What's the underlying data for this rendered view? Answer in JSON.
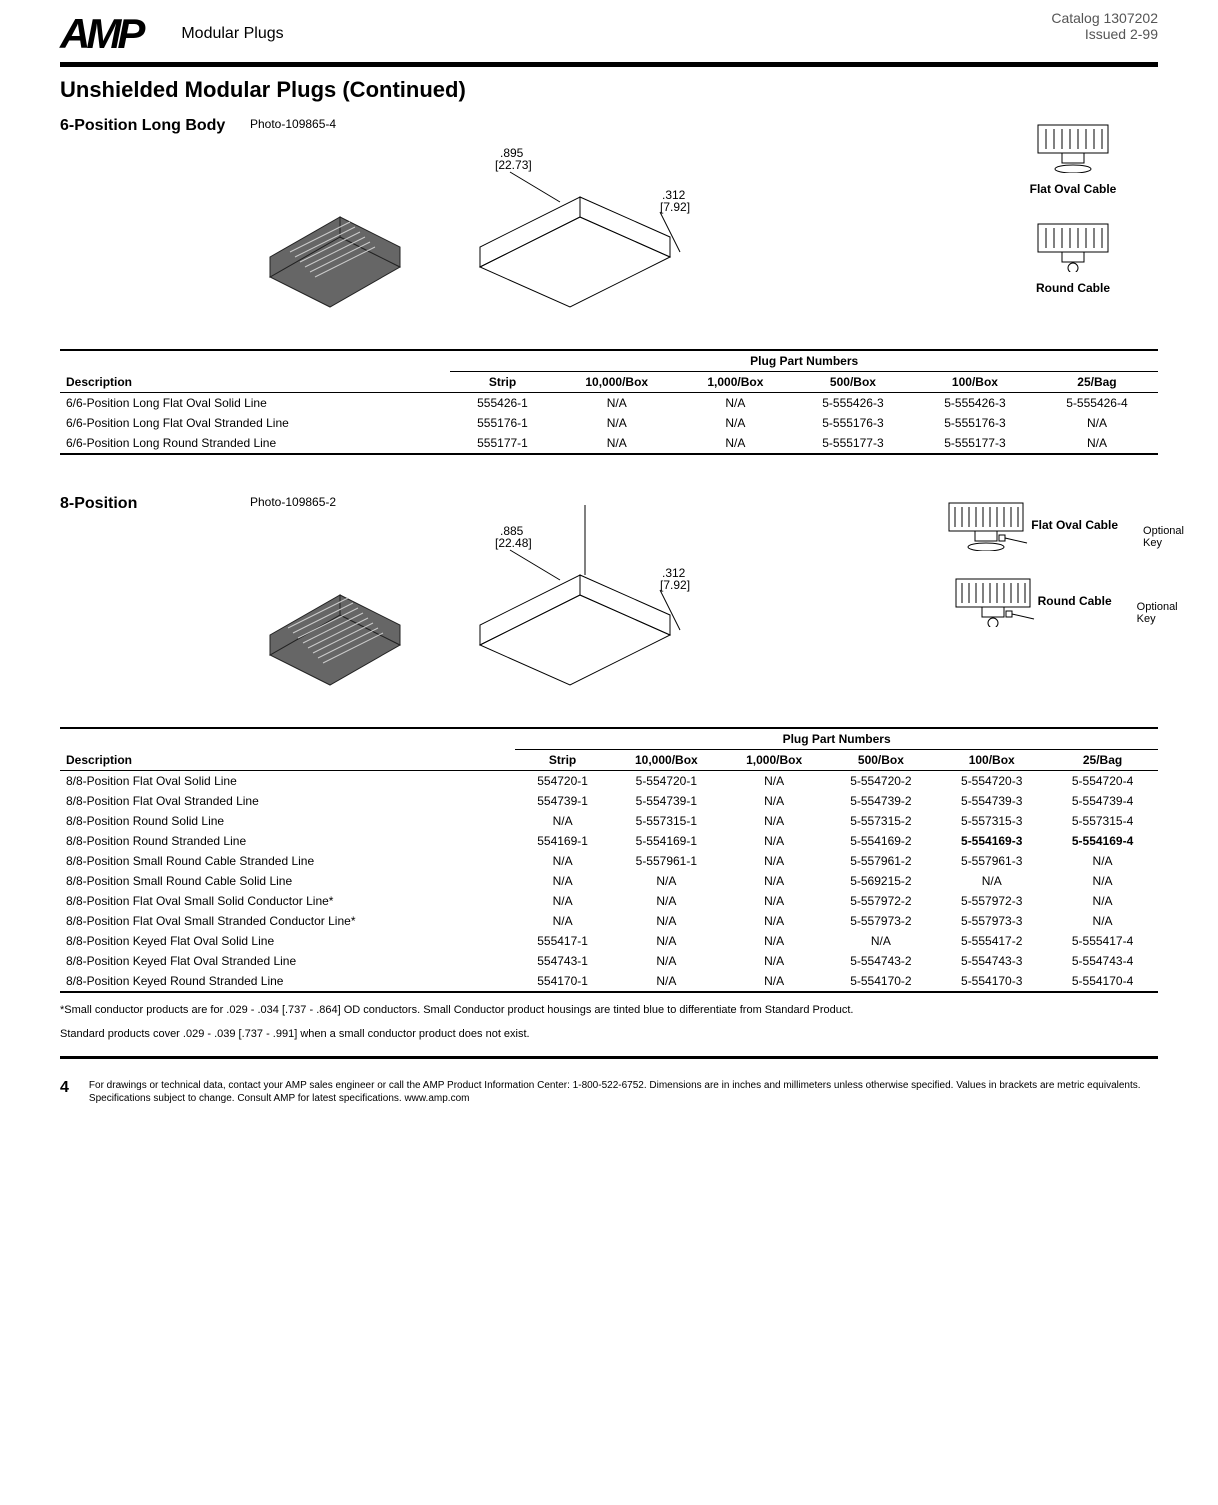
{
  "header": {
    "logo": "AMP",
    "category": "Modular Plugs",
    "catalog": "Catalog 1307202",
    "issued": "Issued 2-99"
  },
  "title": "Unshielded Modular Plugs (Continued)",
  "section6": {
    "heading": "6-Position Long Body",
    "photo": "Photo-109865-4",
    "dim1": ".895",
    "dim1b": "[22.73]",
    "dim2": ".312",
    "dim2b": "[7.92]",
    "icon1": "Flat Oval Cable",
    "icon2": "Round Cable",
    "table_header_group": "Plug Part Numbers",
    "cols": [
      "Description",
      "Strip",
      "10,000/Box",
      "1,000/Box",
      "500/Box",
      "100/Box",
      "25/Bag"
    ],
    "rows": [
      [
        "6/6-Position Long Flat Oval Solid Line",
        "555426-1",
        "N/A",
        "N/A",
        "5-555426-3",
        "5-555426-3",
        "5-555426-4"
      ],
      [
        "6/6-Position Long Flat Oval Stranded Line",
        "555176-1",
        "N/A",
        "N/A",
        "5-555176-3",
        "5-555176-3",
        "N/A"
      ],
      [
        "6/6-Position Long Round Stranded Line",
        "555177-1",
        "N/A",
        "N/A",
        "5-555177-3",
        "5-555177-3",
        "N/A"
      ]
    ]
  },
  "section8": {
    "heading": "8-Position",
    "photo": "Photo-109865-2",
    "dim1": ".885",
    "dim1b": "[22.48]",
    "dim2": ".312",
    "dim2b": "[7.92]",
    "icon1": "Flat Oval Cable",
    "icon2": "Round Cable",
    "optkey": "Optional\nKey",
    "table_header_group": "Plug Part Numbers",
    "cols": [
      "Description",
      "Strip",
      "10,000/Box",
      "1,000/Box",
      "500/Box",
      "100/Box",
      "25/Bag"
    ],
    "rows": [
      [
        "8/8-Position Flat Oval Solid Line",
        "554720-1",
        "5-554720-1",
        "N/A",
        "5-554720-2",
        "5-554720-3",
        "5-554720-4"
      ],
      [
        "8/8-Position Flat Oval Stranded Line",
        "554739-1",
        "5-554739-1",
        "N/A",
        "5-554739-2",
        "5-554739-3",
        "5-554739-4"
      ],
      [
        "8/8-Position Round Solid Line",
        "N/A",
        "5-557315-1",
        "N/A",
        "5-557315-2",
        "5-557315-3",
        "5-557315-4"
      ],
      [
        "8/8-Position Round Stranded Line",
        "554169-1",
        "5-554169-1",
        "N/A",
        "5-554169-2",
        "5-554169-3",
        "5-554169-4"
      ],
      [
        "8/8-Position Small Round Cable Stranded Line",
        "N/A",
        "5-557961-1",
        "N/A",
        "5-557961-2",
        "5-557961-3",
        "N/A"
      ],
      [
        "8/8-Position Small Round Cable Solid Line",
        "N/A",
        "N/A",
        "N/A",
        "5-569215-2",
        "N/A",
        "N/A"
      ],
      [
        "8/8-Position Flat Oval Small Solid Conductor Line*",
        "N/A",
        "N/A",
        "N/A",
        "5-557972-2",
        "5-557972-3",
        "N/A"
      ],
      [
        "8/8-Position Flat Oval Small Stranded Conductor Line*",
        "N/A",
        "N/A",
        "N/A",
        "5-557973-2",
        "5-557973-3",
        "N/A"
      ],
      [
        "8/8-Position Keyed Flat Oval Solid Line",
        "555417-1",
        "N/A",
        "N/A",
        "N/A",
        "5-555417-2",
        "5-555417-4"
      ],
      [
        "8/8-Position Keyed Flat Oval Stranded Line",
        "554743-1",
        "N/A",
        "N/A",
        "5-554743-2",
        "5-554743-3",
        "5-554743-4"
      ],
      [
        "8/8-Position Keyed Round Stranded Line",
        "554170-1",
        "N/A",
        "N/A",
        "5-554170-2",
        "5-554170-3",
        "5-554170-4"
      ]
    ],
    "bold_cells": [
      [
        3,
        5
      ],
      [
        3,
        6
      ]
    ]
  },
  "footnote1": "*Small conductor products are for .029 - .034 [.737 - .864] OD conductors. Small Conductor product housings are tinted blue to differentiate from Standard Product.",
  "footnote2": "Standard products cover .029 - .039 [.737 - .991] when a small conductor product does not exist.",
  "page": "4",
  "footer": "For drawings or technical data, contact your AMP sales engineer or call the AMP Product Information Center: 1-800-522-6752. Dimensions are in inches and millimeters unless otherwise specified. Values in brackets are metric equivalents. Specifications subject to change. Consult AMP for latest specifications. www.amp.com"
}
